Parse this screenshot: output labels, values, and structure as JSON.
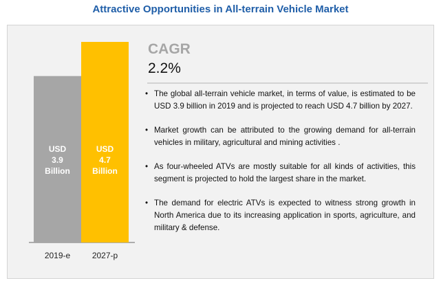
{
  "header": {
    "title": "Attractive Opportunities in All-terrain Vehicle Market"
  },
  "cagr": {
    "label": "CAGR",
    "value": "2.2%"
  },
  "bullets": [
    "The global all-terrain vehicle market, in terms of value, is estimated to be USD 3.9 billion in 2019 and is projected to reach USD 4.7 billion by 2027.",
    "Market growth can be attributed to the growing demand for all-terrain vehicles in military, agricultural and mining activities .",
    "As four-wheeled ATVs are mostly suitable for all kinds of activities, this segment is projected to hold the largest share in the market.",
    "The demand for electric ATVs is expected to witness strong growth in North America due to its increasing application in sports, agriculture, and military & defense."
  ],
  "bullet_symbol": "•",
  "colors": {
    "title": "#1f5ea8",
    "bar_2019": "#a6a6a6",
    "bar_2027": "#ffc000",
    "panel_bg": "#f2f2f2"
  },
  "chart_data": {
    "type": "bar",
    "categories": [
      "2019-e",
      "2027-p"
    ],
    "values": [
      3.9,
      4.7
    ],
    "bar_labels": [
      [
        "USD",
        "3.9",
        "Billion"
      ],
      [
        "USD",
        "4.7",
        "Billion"
      ]
    ],
    "ylim": [
      0,
      4.7
    ],
    "grid": false,
    "title": "",
    "xlabel": "",
    "ylabel": ""
  }
}
